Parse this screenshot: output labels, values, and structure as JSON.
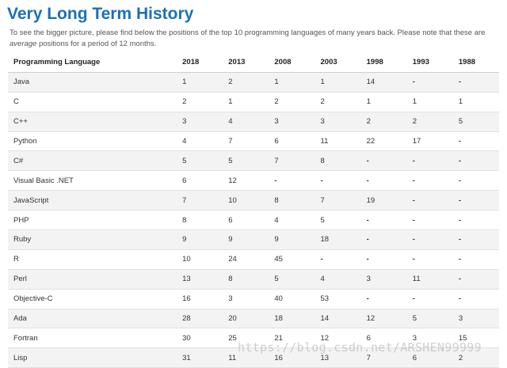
{
  "title": "Very Long Term History",
  "intro": {
    "text_before": "To see the bigger picture, please find below the positions of the top 10 programming languages of many years back. Please note that these are ",
    "text_italic": "average",
    "text_after": " positions for a period of 12 months."
  },
  "table": {
    "headers": [
      "Programming Language",
      "2018",
      "2013",
      "2008",
      "2003",
      "1998",
      "1993",
      "1988"
    ],
    "rows": [
      [
        "Java",
        "1",
        "2",
        "1",
        "1",
        "14",
        "-",
        "-"
      ],
      [
        "C",
        "2",
        "1",
        "2",
        "2",
        "1",
        "1",
        "1"
      ],
      [
        "C++",
        "3",
        "4",
        "3",
        "3",
        "2",
        "2",
        "5"
      ],
      [
        "Python",
        "4",
        "7",
        "6",
        "11",
        "22",
        "17",
        "-"
      ],
      [
        "C#",
        "5",
        "5",
        "7",
        "8",
        "-",
        "-",
        "-"
      ],
      [
        "Visual Basic .NET",
        "6",
        "12",
        "-",
        "-",
        "-",
        "-",
        "-"
      ],
      [
        "JavaScript",
        "7",
        "10",
        "8",
        "7",
        "19",
        "-",
        "-"
      ],
      [
        "PHP",
        "8",
        "6",
        "4",
        "5",
        "-",
        "-",
        "-"
      ],
      [
        "Ruby",
        "9",
        "9",
        "9",
        "18",
        "-",
        "-",
        "-"
      ],
      [
        "R",
        "10",
        "24",
        "45",
        "-",
        "-",
        "-",
        "-"
      ],
      [
        "Perl",
        "13",
        "8",
        "5",
        "4",
        "3",
        "11",
        "-"
      ],
      [
        "Objective-C",
        "16",
        "3",
        "40",
        "53",
        "-",
        "-",
        "-"
      ],
      [
        "Ada",
        "28",
        "20",
        "18",
        "14",
        "12",
        "5",
        "3"
      ],
      [
        "Fortran",
        "30",
        "25",
        "21",
        "12",
        "6",
        "3",
        "15"
      ],
      [
        "Lisp",
        "31",
        "11",
        "16",
        "13",
        "7",
        "6",
        "2"
      ]
    ]
  },
  "watermark": "https://blog.csdn.net/ARSHEN99999"
}
